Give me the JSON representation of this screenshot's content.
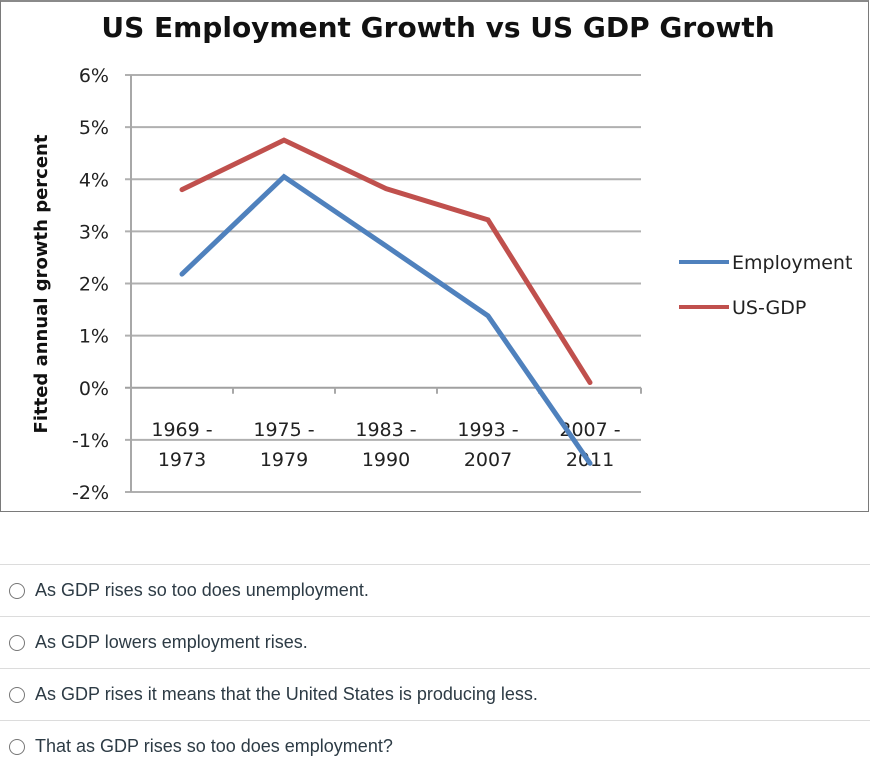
{
  "chart_data": {
    "type": "line",
    "title": "US Employment Growth vs US GDP Growth",
    "xlabel": "",
    "ylabel": "Fitted annual growth percent",
    "categories": [
      [
        "1969 -",
        "1973"
      ],
      [
        "1975 -",
        "1979"
      ],
      [
        "1983 -",
        "1990"
      ],
      [
        "1993 -",
        "2007"
      ],
      [
        "2007 -",
        "2011"
      ]
    ],
    "y_ticks": [
      "6%",
      "5%",
      "4%",
      "3%",
      "2%",
      "1%",
      "0%",
      "-1%",
      "-2%"
    ],
    "y_tick_values": [
      6,
      5,
      4,
      3,
      2,
      1,
      0,
      -1,
      -2
    ],
    "ylim": [
      -2,
      6
    ],
    "grid": true,
    "legend_position": "right",
    "series": [
      {
        "name": "Employment",
        "color": "#4f81bd",
        "values": [
          2.18,
          4.05,
          2.72,
          1.38,
          -1.45
        ]
      },
      {
        "name": "US-GDP",
        "color": "#c0504d",
        "values": [
          3.8,
          4.75,
          3.82,
          3.22,
          0.1
        ]
      }
    ]
  },
  "question": {
    "options": [
      {
        "label": "As GDP rises so too does unemployment.",
        "selected": false
      },
      {
        "label": "As GDP lowers employment rises.",
        "selected": false
      },
      {
        "label": "As GDP rises it means that the United States is producing less.",
        "selected": false
      },
      {
        "label": "That as GDP rises so too does employment?",
        "selected": false
      }
    ]
  }
}
